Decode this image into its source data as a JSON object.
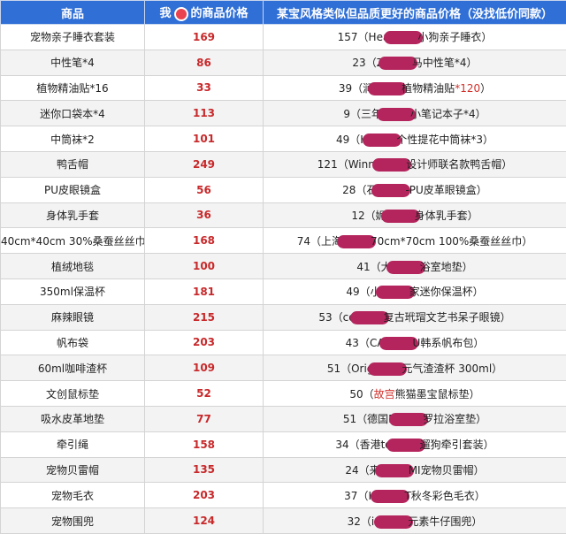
{
  "table": {
    "header": {
      "item": "商品",
      "mine_pre": "我",
      "mine_post": "的商品价格",
      "other": "某宝风格类似但品质更好的商品价格（没找低价同款）"
    },
    "rows": [
      {
        "item": "宠物亲子睡衣套装",
        "price": "169",
        "note": {
          "before": [
            "157（Hea"
          ],
          "after": [
            "小狗亲子睡衣）"
          ]
        }
      },
      {
        "item": "中性笔*4",
        "price": "86",
        "note": {
          "before": [
            "23（Z"
          ],
          "after": [
            "马中性笔*4）"
          ]
        }
      },
      {
        "item": "植物精油贴*16",
        "price": "33",
        "note": {
          "before": [
            "39（涧"
          ],
          "after": [
            "植物精油贴",
            {
              "text": "*120",
              "color": "#d0302a"
            },
            "）"
          ]
        }
      },
      {
        "item": "迷你口袋本*4",
        "price": "113",
        "note": {
          "before": [
            "9（三年"
          ],
          "after": [
            "小笔记本子*4）"
          ]
        }
      },
      {
        "item": "中筒袜*2",
        "price": "101",
        "note": {
          "before": [
            "49（H"
          ],
          "after": [
            "个性提花中筒袜*3）"
          ]
        }
      },
      {
        "item": "鸭舌帽",
        "price": "249",
        "note": {
          "before": [
            "121（Winni"
          ],
          "after": [
            "设计师联名款鸭舌帽）"
          ]
        }
      },
      {
        "item": "PU皮眼镜盒",
        "price": "56",
        "note": {
          "before": [
            "28（石"
          ],
          "after": [
            "-PU皮革眼镜盒）"
          ]
        }
      },
      {
        "item": "身体乳手套",
        "price": "36",
        "note": {
          "before": [
            "12（妮"
          ],
          "after": [
            "身体乳手套）"
          ]
        }
      },
      {
        "item": "40cm*40cm 30%桑蚕丝丝巾",
        "price": "168",
        "note": {
          "before": [
            "74（上海"
          ],
          "after": [
            "70cm*70cm 100%桑蚕丝丝巾）"
          ]
        }
      },
      {
        "item": "植绒地毯",
        "price": "100",
        "note": {
          "before": [
            "41（大"
          ],
          "after": [
            "浴室地垫）"
          ]
        }
      },
      {
        "item": "350ml保温杯",
        "price": "181",
        "note": {
          "before": [
            "49（小"
          ],
          "after": [
            "家迷你保温杯）"
          ]
        }
      },
      {
        "item": "麻辣眼镜",
        "price": "215",
        "note": {
          "before": [
            "53（co"
          ],
          "after": [
            "复古玳瑁文艺书呆子眼镜）"
          ]
        }
      },
      {
        "item": "帆布袋",
        "price": "203",
        "note": {
          "before": [
            "43（CA"
          ],
          "after": [
            "U韩系帆布包）"
          ]
        }
      },
      {
        "item": "60ml咖啡渣杯",
        "price": "109",
        "note": {
          "before": [
            "51（Orig"
          ],
          "after": [
            "元气渣渣杯 300ml）"
          ]
        }
      },
      {
        "item": "文创鼠标垫",
        "price": "52",
        "note": {
          "before": [
            "50（",
            {
              "text": "故宫",
              "color": "#d0302a"
            },
            "熊猫墨宝鼠标垫）"
          ]
        }
      },
      {
        "item": "吸水皮革地垫",
        "price": "77",
        "note": {
          "before": [
            "51（德国F"
          ],
          "after": [
            "罗拉浴室垫）"
          ]
        }
      },
      {
        "item": "牵引绳",
        "price": "158",
        "note": {
          "before": [
            "34（香港to"
          ],
          "after": [
            "遛狗牵引套装）"
          ]
        }
      },
      {
        "item": "宠物贝雷帽",
        "price": "135",
        "note": {
          "before": [
            "24（来"
          ],
          "after": [
            "MI宠物贝雷帽）"
          ]
        }
      },
      {
        "item": "宠物毛衣",
        "price": "203",
        "note": {
          "before": [
            "37（H"
          ],
          "after": [
            "T秋冬彩色毛衣）"
          ]
        }
      },
      {
        "item": "宠物围兜",
        "price": "124",
        "note": {
          "before": [
            "32（is"
          ],
          "after": [
            "元素牛仔围兜）"
          ]
        }
      }
    ]
  }
}
